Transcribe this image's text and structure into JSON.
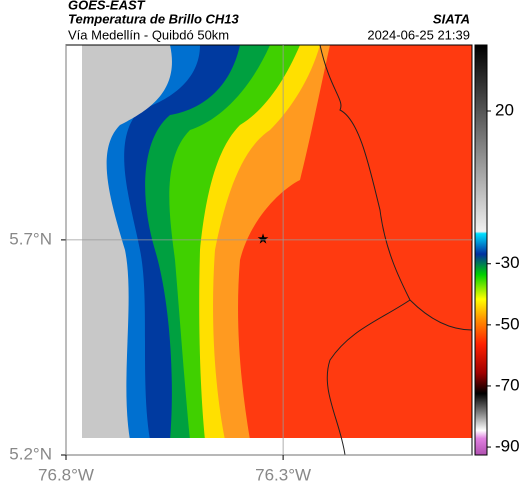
{
  "header": {
    "source": "GOES-EAST",
    "title": "Temperatura de Brillo CH13",
    "credit": "SIATA",
    "subtitle": "Vía Medellín - Quibdó 50km",
    "timestamp": "2024-06-25 21:39"
  },
  "map": {
    "lat_lim": [
      5.2,
      6.153
    ],
    "lon_lim": [
      -76.8,
      -75.865
    ],
    "lat_ticks": [
      {
        "value": 5.2,
        "label": "5.2°N"
      },
      {
        "value": 5.7,
        "label": "5.7°N"
      }
    ],
    "lon_ticks": [
      {
        "value": -76.8,
        "label": "76.8°W"
      },
      {
        "value": -76.3,
        "label": "76.3°W"
      }
    ],
    "colorbar": {
      "lim": [
        -92.6,
        41.6
      ],
      "ticks": [
        20,
        -30,
        -50,
        -70,
        -90
      ]
    }
  }
}
